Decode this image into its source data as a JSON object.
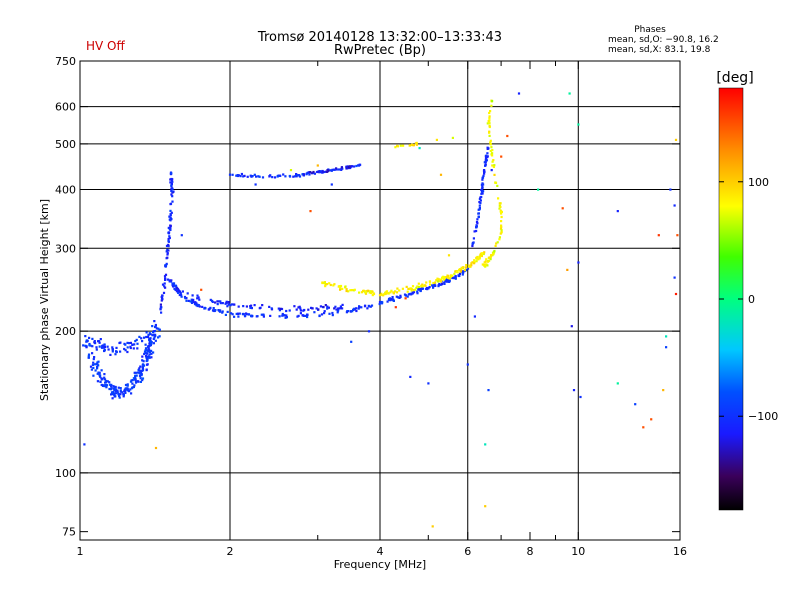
{
  "chart_data": {
    "type": "scatter",
    "title": "Tromsø 20140128 13:32:00–13:33:43",
    "subtitle": "RwPretec (Bp)",
    "status": "HV Off",
    "phases_header": "Phases",
    "phases_o": "mean, sd,O: −90.8, 16.2",
    "phases_x": "mean, sd,X:  83.1, 19.8",
    "xlabel": "Frequency [MHz]",
    "ylabel": "Stationary phase Virtual Height [km]",
    "xscale": "log",
    "yscale": "log",
    "xlim": [
      1,
      16
    ],
    "ylim": [
      72,
      750
    ],
    "x_ticks": [
      1,
      2,
      4,
      6,
      8,
      10,
      16
    ],
    "x_tick_labels": [
      "1",
      "2",
      "4",
      "6",
      "8",
      "10",
      "16"
    ],
    "x_minor_ticks": [
      3,
      5,
      7,
      9
    ],
    "x_gridlines": [
      2,
      4,
      6,
      10
    ],
    "y_ticks": [
      75,
      100,
      200,
      300,
      400,
      500,
      600,
      750
    ],
    "y_tick_labels": [
      "75",
      "100",
      "200",
      "300",
      "400",
      "500",
      "600",
      "750"
    ],
    "y_gridlines": [
      100,
      200,
      300,
      400,
      500,
      600
    ],
    "colorbar": {
      "label": "[deg]",
      "range": [
        -180,
        180
      ],
      "ticks": [
        100,
        0,
        -100
      ],
      "tick_labels": [
        "100",
        "0",
        "−100"
      ]
    },
    "traces": [
      {
        "name": "",
        "phase": -95,
        "points": [
          [
            1.02,
            195
          ],
          [
            1.06,
            172
          ],
          [
            1.1,
            160
          ],
          [
            1.15,
            150
          ],
          [
            1.2,
            148
          ],
          [
            1.26,
            152
          ],
          [
            1.32,
            162
          ],
          [
            1.36,
            175
          ],
          [
            1.38,
            185
          ],
          [
            1.42,
            205
          ]
        ],
        "spread_x": 0.025,
        "spread_y": 0.05,
        "count": 250
      },
      {
        "name": "",
        "phase": -100,
        "points": [
          [
            1.05,
            190
          ],
          [
            1.15,
            182
          ],
          [
            1.25,
            185
          ],
          [
            1.35,
            192
          ],
          [
            1.45,
            200
          ]
        ],
        "spread_x": 0.02,
        "spread_y": 0.04,
        "count": 80
      },
      {
        "name": "",
        "phase": -105,
        "points": [
          [
            1.45,
            220
          ],
          [
            1.48,
            260
          ],
          [
            1.5,
            300
          ],
          [
            1.52,
            350
          ],
          [
            1.53,
            400
          ],
          [
            1.52,
            440
          ]
        ],
        "spread_x": 0.008,
        "spread_y": 0.03,
        "count": 90
      },
      {
        "name": "",
        "phase": -100,
        "points": [
          [
            1.5,
            260
          ],
          [
            1.6,
            238
          ],
          [
            1.75,
            225
          ],
          [
            2.0,
            218
          ],
          [
            2.4,
            215
          ],
          [
            3.0,
            216
          ],
          [
            3.5,
            222
          ],
          [
            4.0,
            230
          ],
          [
            4.5,
            238
          ],
          [
            5.0,
            248
          ],
          [
            5.5,
            256
          ],
          [
            6.0,
            270
          ]
        ],
        "spread_x": 0.008,
        "spread_y": 0.015,
        "count": 260
      },
      {
        "name": "",
        "phase": -110,
        "points": [
          [
            1.55,
            245
          ],
          [
            1.8,
            232
          ],
          [
            2.2,
            225
          ],
          [
            2.8,
            222
          ],
          [
            3.4,
            225
          ]
        ],
        "spread_x": 0.01,
        "spread_y": 0.02,
        "count": 90
      },
      {
        "name": "",
        "phase": 85,
        "points": [
          [
            3.0,
            255
          ],
          [
            3.5,
            245
          ],
          [
            4.0,
            240
          ],
          [
            4.5,
            245
          ],
          [
            5.0,
            252
          ],
          [
            5.5,
            262
          ],
          [
            6.0,
            275
          ],
          [
            6.5,
            295
          ]
        ],
        "spread_x": 0.01,
        "spread_y": 0.02,
        "count": 170
      },
      {
        "name": "",
        "phase": -100,
        "points": [
          [
            2.0,
            430
          ],
          [
            2.3,
            426
          ],
          [
            2.7,
            428
          ],
          [
            3.0,
            435
          ],
          [
            3.3,
            442
          ],
          [
            3.7,
            452
          ]
        ],
        "spread_x": 0.006,
        "spread_y": 0.01,
        "count": 90
      },
      {
        "name": "",
        "phase": -120,
        "points": [
          [
            2.8,
            430
          ],
          [
            3.2,
            440
          ],
          [
            3.6,
            450
          ]
        ],
        "spread_x": 0.004,
        "spread_y": 0.01,
        "count": 25
      },
      {
        "name": "",
        "phase": -105,
        "points": [
          [
            6.1,
            300
          ],
          [
            6.3,
            350
          ],
          [
            6.4,
            400
          ],
          [
            6.5,
            450
          ],
          [
            6.6,
            500
          ]
        ],
        "spread_x": 0.006,
        "spread_y": 0.02,
        "count": 70
      },
      {
        "name": "",
        "phase": 80,
        "points": [
          [
            6.4,
            270
          ],
          [
            6.7,
            290
          ],
          [
            7.0,
            320
          ],
          [
            7.0,
            360
          ],
          [
            6.8,
            420
          ],
          [
            6.7,
            480
          ],
          [
            6.6,
            550
          ],
          [
            6.7,
            620
          ]
        ],
        "spread_x": 0.006,
        "spread_y": 0.025,
        "count": 90
      },
      {
        "name": "",
        "phase": 90,
        "points": [
          [
            4.3,
            495
          ],
          [
            4.8,
            500
          ]
        ],
        "spread_x": 0.01,
        "spread_y": 0.01,
        "count": 14
      }
    ],
    "scatter_points": [
      [
        1.02,
        115,
        -100
      ],
      [
        1.42,
        113,
        110
      ],
      [
        1.6,
        320,
        -100
      ],
      [
        1.75,
        245,
        150
      ],
      [
        2.25,
        410,
        -100
      ],
      [
        2.65,
        440,
        70
      ],
      [
        2.9,
        360,
        150
      ],
      [
        3.0,
        450,
        110
      ],
      [
        3.2,
        410,
        -100
      ],
      [
        3.5,
        190,
        -90
      ],
      [
        3.8,
        200,
        -105
      ],
      [
        4.3,
        225,
        160
      ],
      [
        4.5,
        235,
        155
      ],
      [
        4.6,
        160,
        -105
      ],
      [
        4.8,
        490,
        -20
      ],
      [
        5.0,
        155,
        -100
      ],
      [
        5.1,
        77,
        100
      ],
      [
        5.2,
        510,
        90
      ],
      [
        5.3,
        430,
        110
      ],
      [
        5.5,
        290,
        90
      ],
      [
        5.6,
        515,
        70
      ],
      [
        6.0,
        170,
        -100
      ],
      [
        6.2,
        215,
        -105
      ],
      [
        6.5,
        115,
        -20
      ],
      [
        6.5,
        85,
        100
      ],
      [
        6.6,
        150,
        -90
      ],
      [
        6.7,
        440,
        -110
      ],
      [
        7.0,
        470,
        150
      ],
      [
        7.2,
        520,
        150
      ],
      [
        7.6,
        640,
        -110
      ],
      [
        8.3,
        400,
        -10
      ],
      [
        9.3,
        365,
        150
      ],
      [
        9.5,
        270,
        120
      ],
      [
        9.6,
        640,
        -10
      ],
      [
        9.7,
        205,
        -120
      ],
      [
        9.8,
        150,
        -110
      ],
      [
        10.0,
        550,
        -10
      ],
      [
        10.1,
        145,
        -100
      ],
      [
        10.0,
        280,
        -110
      ],
      [
        12.0,
        360,
        -110
      ],
      [
        12.0,
        155,
        -10
      ],
      [
        13.0,
        140,
        -90
      ],
      [
        13.5,
        125,
        150
      ],
      [
        14.0,
        130,
        150
      ],
      [
        14.5,
        320,
        160
      ],
      [
        14.8,
        150,
        110
      ],
      [
        15.0,
        195,
        -20
      ],
      [
        15.0,
        185,
        -90
      ],
      [
        15.3,
        400,
        -100
      ],
      [
        15.6,
        370,
        -105
      ],
      [
        15.6,
        260,
        -100
      ],
      [
        15.7,
        240,
        170
      ],
      [
        15.8,
        320,
        150
      ],
      [
        15.7,
        510,
        100
      ]
    ]
  }
}
